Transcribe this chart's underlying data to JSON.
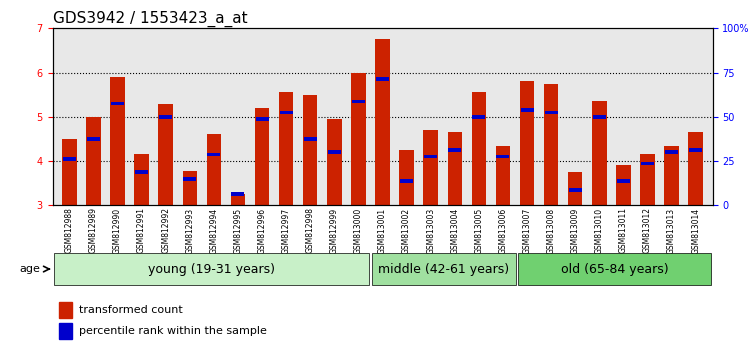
{
  "title": "GDS3942 / 1553423_a_at",
  "samples": [
    "GSM812988",
    "GSM812989",
    "GSM812990",
    "GSM812991",
    "GSM812992",
    "GSM812993",
    "GSM812994",
    "GSM812995",
    "GSM812996",
    "GSM812997",
    "GSM812998",
    "GSM812999",
    "GSM813000",
    "GSM813001",
    "GSM813002",
    "GSM813003",
    "GSM813004",
    "GSM813005",
    "GSM813006",
    "GSM813007",
    "GSM813008",
    "GSM813009",
    "GSM813010",
    "GSM813011",
    "GSM813012",
    "GSM813013",
    "GSM813014"
  ],
  "red_values": [
    4.5,
    5.0,
    5.9,
    4.15,
    5.3,
    3.78,
    4.62,
    3.25,
    5.2,
    5.55,
    5.5,
    4.95,
    6.0,
    6.75,
    4.25,
    4.7,
    4.65,
    5.55,
    4.35,
    5.8,
    5.75,
    3.75,
    5.35,
    3.9,
    4.15,
    4.35,
    4.65
  ],
  "blue_values": [
    4.05,
    4.5,
    5.3,
    3.75,
    5.0,
    3.6,
    4.15,
    3.25,
    4.95,
    5.1,
    4.5,
    4.2,
    5.35,
    5.85,
    3.55,
    4.1,
    4.25,
    5.0,
    4.1,
    5.15,
    5.1,
    3.35,
    5.0,
    3.55,
    3.95,
    4.2,
    4.25
  ],
  "groups": [
    {
      "label": "young (19-31 years)",
      "start": 0,
      "end": 13,
      "color": "#c8f0c8"
    },
    {
      "label": "middle (42-61 years)",
      "start": 13,
      "end": 19,
      "color": "#a0e0a0"
    },
    {
      "label": "old (65-84 years)",
      "start": 19,
      "end": 27,
      "color": "#70d070"
    }
  ],
  "ylim_left": [
    3,
    7
  ],
  "ylim_right": [
    0,
    100
  ],
  "yticks_left": [
    3,
    4,
    5,
    6,
    7
  ],
  "yticks_right": [
    0,
    25,
    50,
    75,
    100
  ],
  "ytick_labels_right": [
    "0",
    "25",
    "50",
    "75",
    "100%"
  ],
  "bar_color": "#cc2200",
  "dot_color": "#0000cc",
  "background_color": "#e8e8e8",
  "title_fontsize": 11,
  "tick_fontsize": 7,
  "label_fontsize": 8,
  "group_label_fontsize": 9
}
